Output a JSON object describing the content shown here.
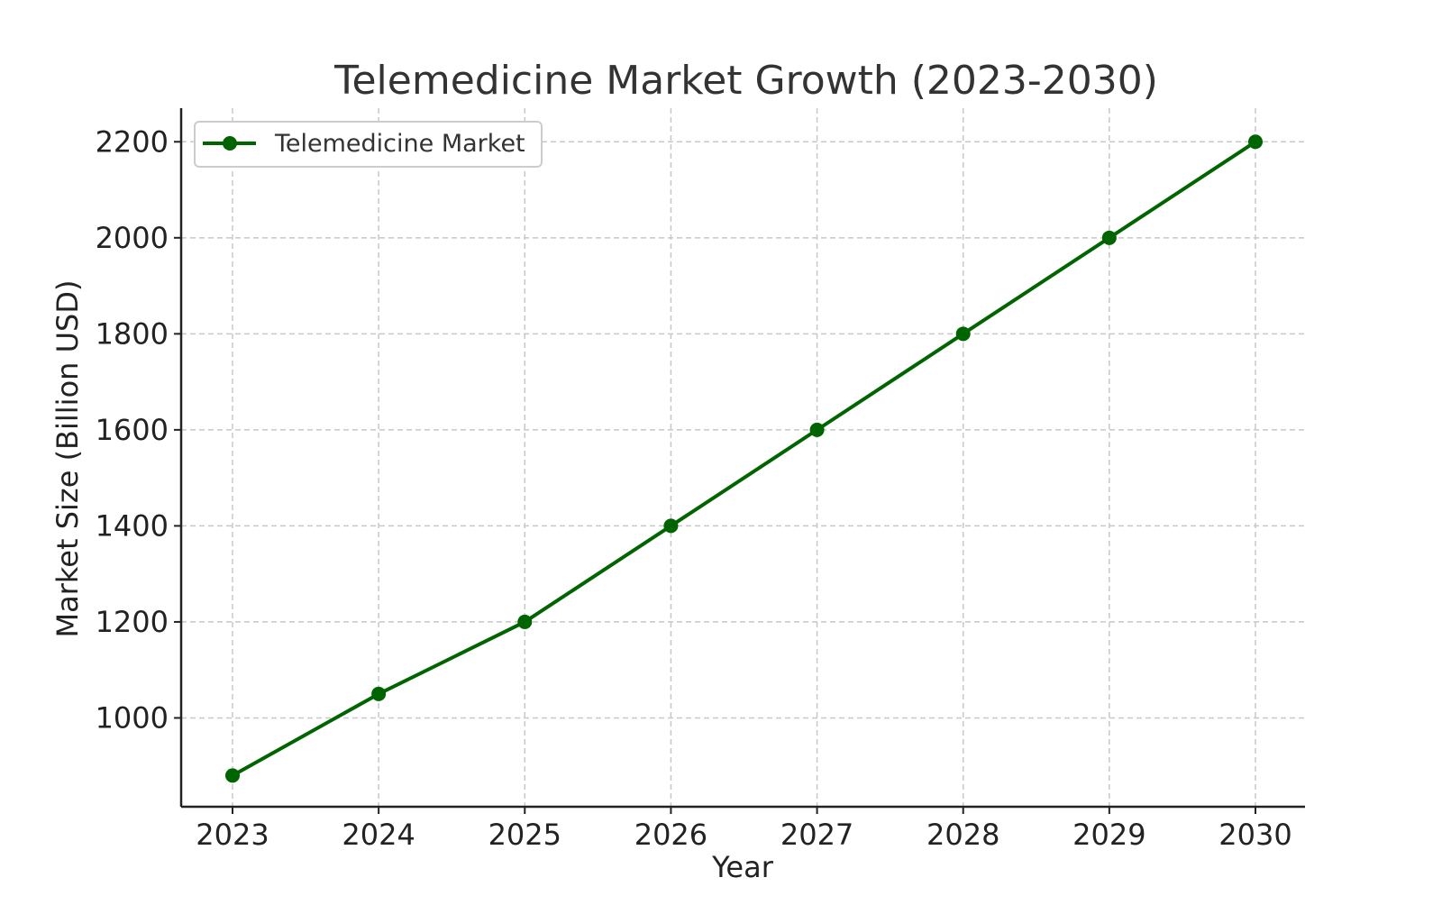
{
  "chart_data": {
    "type": "line",
    "title": "Telemedicine Market Growth (2023-2030)",
    "xlabel": "Year",
    "ylabel": "Market Size (Billion USD)",
    "x": [
      "2023",
      "2024",
      "2025",
      "2026",
      "2027",
      "2028",
      "2029",
      "2030"
    ],
    "series": [
      {
        "name": "Telemedicine Market",
        "values": [
          880,
          1050,
          1200,
          1400,
          1600,
          1800,
          2000,
          2200
        ],
        "color": "#006400",
        "marker": "circle"
      }
    ],
    "yticks": [
      "1000",
      "1200",
      "1400",
      "1600",
      "1800",
      "2000",
      "2200"
    ],
    "ylim": [
      815,
      2270
    ],
    "grid": true,
    "grid_style": "dashed",
    "legend": "top-left"
  }
}
